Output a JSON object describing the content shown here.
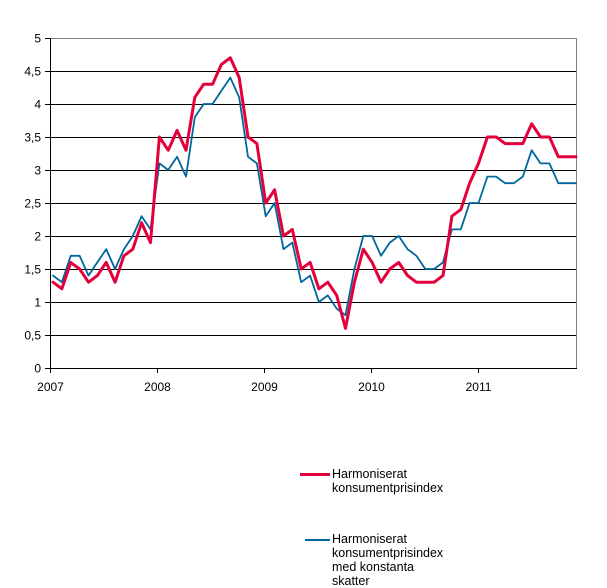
{
  "chart_data": {
    "type": "line",
    "title": "",
    "xlabel": "",
    "ylabel": "",
    "ylim": [
      0,
      5
    ],
    "yticks": [
      "0",
      "0,5",
      "1",
      "1,5",
      "2",
      "2,5",
      "3",
      "3,5",
      "4",
      "4,5",
      "5"
    ],
    "xticks": [
      "2007",
      "2008",
      "2009",
      "2010",
      "2011"
    ],
    "grid": true,
    "legend_position": "upper-center-right",
    "x": [
      "2007-01",
      "2007-02",
      "2007-03",
      "2007-04",
      "2007-05",
      "2007-06",
      "2007-07",
      "2007-08",
      "2007-09",
      "2007-10",
      "2007-11",
      "2007-12",
      "2008-01",
      "2008-02",
      "2008-03",
      "2008-04",
      "2008-05",
      "2008-06",
      "2008-07",
      "2008-08",
      "2008-09",
      "2008-10",
      "2008-11",
      "2008-12",
      "2009-01",
      "2009-02",
      "2009-03",
      "2009-04",
      "2009-05",
      "2009-06",
      "2009-07",
      "2009-08",
      "2009-09",
      "2009-10",
      "2009-11",
      "2009-12",
      "2010-01",
      "2010-02",
      "2010-03",
      "2010-04",
      "2010-05",
      "2010-06",
      "2010-07",
      "2010-08",
      "2010-09",
      "2010-10",
      "2010-11",
      "2010-12",
      "2011-01",
      "2011-02",
      "2011-03",
      "2011-04",
      "2011-05",
      "2011-06",
      "2011-07",
      "2011-08",
      "2011-09",
      "2011-10",
      "2011-11",
      "2011-12"
    ],
    "series": [
      {
        "name": "Harmoniserat konsumentprisindex",
        "color": "#e4003a",
        "width": 3,
        "values": [
          1.3,
          1.2,
          1.6,
          1.5,
          1.3,
          1.4,
          1.6,
          1.3,
          1.7,
          1.8,
          2.2,
          1.9,
          3.5,
          3.3,
          3.6,
          3.3,
          4.1,
          4.3,
          4.3,
          4.6,
          4.7,
          4.4,
          3.5,
          3.4,
          2.5,
          2.7,
          2.0,
          2.1,
          1.5,
          1.6,
          1.2,
          1.3,
          1.1,
          0.6,
          1.3,
          1.8,
          1.6,
          1.3,
          1.5,
          1.6,
          1.4,
          1.3,
          1.3,
          1.3,
          1.4,
          2.3,
          2.4,
          2.8,
          3.1,
          3.5,
          3.5,
          3.4,
          3.4,
          3.4,
          3.7,
          3.5,
          3.5,
          3.2,
          3.2,
          3.2
        ]
      },
      {
        "name": "Harmoniserat konsumentprisindex med konstanta skatter",
        "color": "#00669e",
        "width": 1.8,
        "values": [
          1.4,
          1.3,
          1.7,
          1.7,
          1.4,
          1.6,
          1.8,
          1.5,
          1.8,
          2.0,
          2.3,
          2.1,
          3.1,
          3.0,
          3.2,
          2.9,
          3.8,
          4.0,
          4.0,
          4.2,
          4.4,
          4.1,
          3.2,
          3.1,
          2.3,
          2.5,
          1.8,
          1.9,
          1.3,
          1.4,
          1.0,
          1.1,
          0.9,
          0.8,
          1.5,
          2.0,
          2.0,
          1.7,
          1.9,
          2.0,
          1.8,
          1.7,
          1.5,
          1.5,
          1.6,
          2.1,
          2.1,
          2.5,
          2.5,
          2.9,
          2.9,
          2.8,
          2.8,
          2.9,
          3.3,
          3.1,
          3.1,
          2.8,
          2.8,
          2.8
        ]
      }
    ]
  },
  "legend": {
    "items": [
      {
        "label": "Harmoniserat\nkonsumentprisindex",
        "color": "#e4003a"
      },
      {
        "label": "Harmoniserat\nkonsumentprisindex\nmed konstanta\nskatter",
        "color": "#00669e"
      }
    ]
  },
  "colors": {
    "gridline": "#000000",
    "frame": "#808080",
    "background": "#ffffff"
  }
}
